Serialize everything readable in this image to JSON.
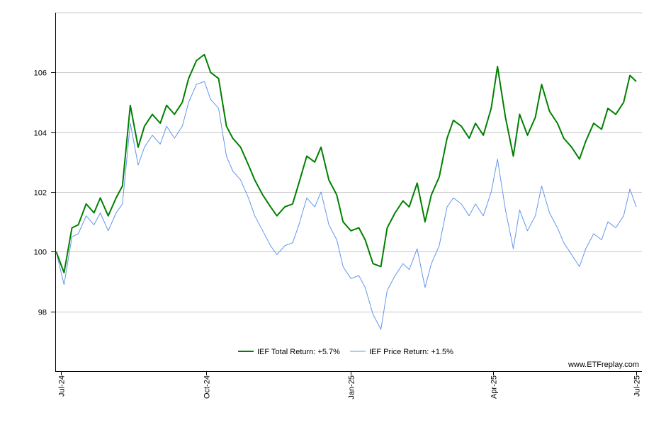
{
  "chart_data": {
    "type": "line",
    "title": "",
    "xlabel": "",
    "ylabel": "",
    "x_range": [
      "2024-07-01",
      "2025-07-01"
    ],
    "x_ticks": [
      {
        "date": "2024-07-01",
        "label": "Jul-24"
      },
      {
        "date": "2024-10-01",
        "label": "Oct-24"
      },
      {
        "date": "2025-01-01",
        "label": "Jan-25"
      },
      {
        "date": "2025-04-01",
        "label": "Apr-25"
      },
      {
        "date": "2025-07-01",
        "label": "Jul-25"
      }
    ],
    "ylim": [
      96,
      108
    ],
    "y_ticks": [
      98,
      100,
      102,
      104,
      106
    ],
    "grid": true,
    "legend_placement": "bottom-center",
    "watermark": "www.ETFreplay.com",
    "series": [
      {
        "name": "IEF Total Return: +5.7%",
        "color": "#008000",
        "x": [
          "2024-06-28",
          "2024-07-03",
          "2024-07-08",
          "2024-07-12",
          "2024-07-17",
          "2024-07-22",
          "2024-07-26",
          "2024-07-31",
          "2024-08-05",
          "2024-08-09",
          "2024-08-14",
          "2024-08-19",
          "2024-08-23",
          "2024-08-28",
          "2024-09-02",
          "2024-09-06",
          "2024-09-11",
          "2024-09-16",
          "2024-09-20",
          "2024-09-25",
          "2024-09-30",
          "2024-10-04",
          "2024-10-09",
          "2024-10-14",
          "2024-10-18",
          "2024-10-23",
          "2024-10-28",
          "2024-11-01",
          "2024-11-06",
          "2024-11-11",
          "2024-11-15",
          "2024-11-20",
          "2024-11-25",
          "2024-11-29",
          "2024-12-04",
          "2024-12-09",
          "2024-12-13",
          "2024-12-18",
          "2024-12-23",
          "2024-12-27",
          "2025-01-01",
          "2025-01-06",
          "2025-01-10",
          "2025-01-15",
          "2025-01-20",
          "2025-01-24",
          "2025-01-29",
          "2025-02-03",
          "2025-02-07",
          "2025-02-12",
          "2025-02-17",
          "2025-02-21",
          "2025-02-26",
          "2025-03-03",
          "2025-03-07",
          "2025-03-12",
          "2025-03-17",
          "2025-03-21",
          "2025-03-26",
          "2025-03-31",
          "2025-04-04",
          "2025-04-09",
          "2025-04-14",
          "2025-04-18",
          "2025-04-23",
          "2025-04-28",
          "2025-05-02",
          "2025-05-07",
          "2025-05-12",
          "2025-05-16",
          "2025-05-21",
          "2025-05-26",
          "2025-05-30",
          "2025-06-04",
          "2025-06-09",
          "2025-06-13",
          "2025-06-18",
          "2025-06-23",
          "2025-06-27",
          "2025-07-01"
        ],
        "values": [
          100.0,
          99.3,
          100.8,
          100.9,
          101.6,
          101.3,
          101.8,
          101.2,
          101.8,
          102.2,
          104.9,
          103.5,
          104.2,
          104.6,
          104.3,
          104.9,
          104.6,
          105.0,
          105.8,
          106.4,
          106.6,
          106.0,
          105.8,
          104.2,
          103.8,
          103.5,
          102.9,
          102.4,
          101.9,
          101.5,
          101.2,
          101.5,
          101.6,
          102.3,
          103.2,
          103.0,
          103.5,
          102.4,
          101.9,
          101.0,
          100.7,
          100.8,
          100.4,
          99.6,
          99.5,
          100.8,
          101.3,
          101.7,
          101.5,
          102.3,
          101.0,
          101.9,
          102.5,
          103.8,
          104.4,
          104.2,
          103.8,
          104.3,
          103.9,
          104.8,
          106.2,
          104.5,
          103.2,
          104.6,
          103.9,
          104.5,
          105.6,
          104.7,
          104.3,
          103.8,
          103.5,
          103.1,
          103.7,
          104.3,
          104.1,
          104.8,
          104.6,
          105.0,
          105.9,
          105.7
        ]
      },
      {
        "name": "IEF Price Return: +1.5%",
        "color": "#6495ED",
        "x": [
          "2024-06-28",
          "2024-07-03",
          "2024-07-08",
          "2024-07-12",
          "2024-07-17",
          "2024-07-22",
          "2024-07-26",
          "2024-07-31",
          "2024-08-05",
          "2024-08-09",
          "2024-08-14",
          "2024-08-19",
          "2024-08-23",
          "2024-08-28",
          "2024-09-02",
          "2024-09-06",
          "2024-09-11",
          "2024-09-16",
          "2024-09-20",
          "2024-09-25",
          "2024-09-30",
          "2024-10-04",
          "2024-10-09",
          "2024-10-14",
          "2024-10-18",
          "2024-10-23",
          "2024-10-28",
          "2024-11-01",
          "2024-11-06",
          "2024-11-11",
          "2024-11-15",
          "2024-11-20",
          "2024-11-25",
          "2024-11-29",
          "2024-12-04",
          "2024-12-09",
          "2024-12-13",
          "2024-12-18",
          "2024-12-23",
          "2024-12-27",
          "2025-01-01",
          "2025-01-06",
          "2025-01-10",
          "2025-01-15",
          "2025-01-20",
          "2025-01-24",
          "2025-01-29",
          "2025-02-03",
          "2025-02-07",
          "2025-02-12",
          "2025-02-17",
          "2025-02-21",
          "2025-02-26",
          "2025-03-03",
          "2025-03-07",
          "2025-03-12",
          "2025-03-17",
          "2025-03-21",
          "2025-03-26",
          "2025-03-31",
          "2025-04-04",
          "2025-04-09",
          "2025-04-14",
          "2025-04-18",
          "2025-04-23",
          "2025-04-28",
          "2025-05-02",
          "2025-05-07",
          "2025-05-12",
          "2025-05-16",
          "2025-05-21",
          "2025-05-26",
          "2025-05-30",
          "2025-06-04",
          "2025-06-09",
          "2025-06-13",
          "2025-06-18",
          "2025-06-23",
          "2025-06-27",
          "2025-07-01"
        ],
        "values": [
          100.0,
          98.9,
          100.5,
          100.6,
          101.2,
          100.9,
          101.3,
          100.7,
          101.3,
          101.6,
          104.3,
          102.9,
          103.5,
          103.9,
          103.6,
          104.2,
          103.8,
          104.2,
          105.0,
          105.6,
          105.7,
          105.1,
          104.8,
          103.2,
          102.7,
          102.4,
          101.8,
          101.2,
          100.7,
          100.2,
          99.9,
          100.2,
          100.3,
          100.9,
          101.8,
          101.5,
          102.0,
          100.9,
          100.4,
          99.5,
          99.1,
          99.2,
          98.8,
          97.9,
          97.4,
          98.7,
          99.2,
          99.6,
          99.4,
          100.1,
          98.8,
          99.6,
          100.2,
          101.5,
          101.8,
          101.6,
          101.2,
          101.6,
          101.2,
          102.0,
          103.1,
          101.4,
          100.1,
          101.4,
          100.7,
          101.2,
          102.2,
          101.3,
          100.8,
          100.3,
          99.9,
          99.5,
          100.1,
          100.6,
          100.4,
          101.0,
          100.8,
          101.2,
          102.1,
          101.5
        ]
      }
    ]
  }
}
